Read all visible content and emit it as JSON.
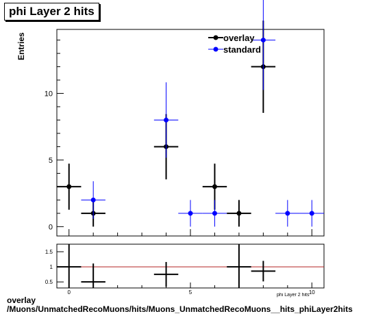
{
  "title": "phi Layer 2 hits",
  "footer": {
    "line1": "overlay",
    "line2": "/Muons/UnmatchedRecoMuons/hits/Muons_UnmatchedRecoMuons__hits_phiLayer2hits"
  },
  "colors": {
    "overlay": "#000000",
    "standard": "#0000ff",
    "ratio_line": "#b22222"
  },
  "chart_data": [
    {
      "type": "scatter",
      "title": "phi Layer 2 hits",
      "xlabel": "phi Layer 2 hits",
      "ylabel": "Entries",
      "xlim": [
        -0.5,
        10.5
      ],
      "ylim": [
        -0.7,
        14.8
      ],
      "x_ticks": [
        "0",
        "5",
        "10"
      ],
      "y_ticks": [
        "0",
        "5",
        "10"
      ],
      "legend_position": "top-right",
      "series": [
        {
          "name": "overlay",
          "points": [
            {
              "x": 0,
              "y": 3,
              "err": 1.73
            },
            {
              "x": 1,
              "y": 1,
              "err": 1.0
            },
            {
              "x": 4,
              "y": 6,
              "err": 2.45
            },
            {
              "x": 6,
              "y": 3,
              "err": 1.73
            },
            {
              "x": 7,
              "y": 1,
              "err": 1.0
            },
            {
              "x": 8,
              "y": 12,
              "err": 3.46
            }
          ]
        },
        {
          "name": "standard",
          "points": [
            {
              "x": 1,
              "y": 2,
              "err": 1.41
            },
            {
              "x": 4,
              "y": 8,
              "err": 2.83
            },
            {
              "x": 5,
              "y": 1,
              "err": 1.0
            },
            {
              "x": 6,
              "y": 1,
              "err": 1.0
            },
            {
              "x": 8,
              "y": 14,
              "err": 3.74
            },
            {
              "x": 9,
              "y": 1,
              "err": 1.0
            },
            {
              "x": 10,
              "y": 1,
              "err": 1.0
            }
          ]
        }
      ]
    },
    {
      "type": "scatter",
      "xlim": [
        -0.5,
        10.5
      ],
      "ylim": [
        0.3,
        1.75
      ],
      "y_ticks": [
        "0.5",
        "1",
        "1.5"
      ],
      "x_ticks": [
        "0",
        "5",
        "10"
      ],
      "reference_line": 1,
      "points": [
        {
          "x": 0,
          "y": 1.0,
          "err": 1.5
        },
        {
          "x": 1,
          "y": 0.5,
          "err": 0.61
        },
        {
          "x": 4,
          "y": 0.75,
          "err": 0.41
        },
        {
          "x": 7,
          "y": 1.0,
          "err": 1.41
        },
        {
          "x": 8,
          "y": 0.857,
          "err": 0.34
        }
      ]
    }
  ]
}
